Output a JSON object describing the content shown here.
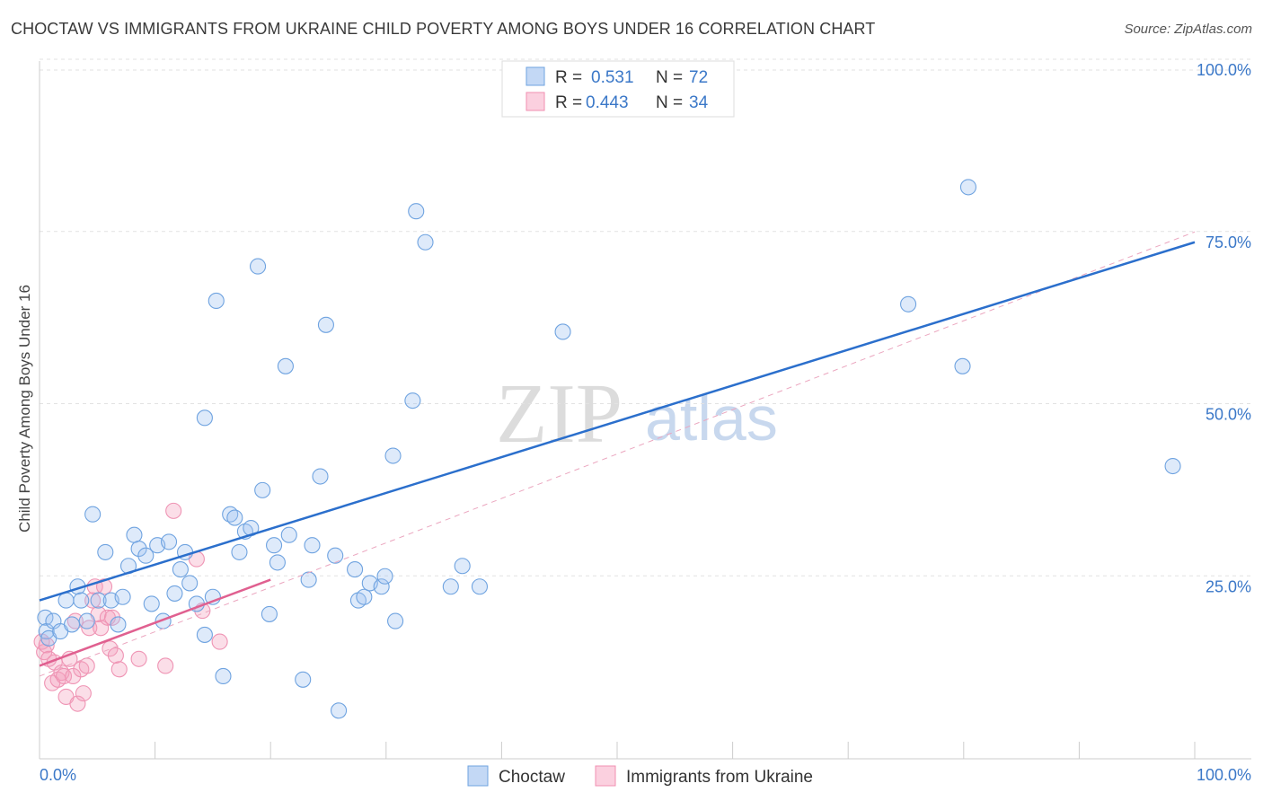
{
  "title": "CHOCTAW VS IMMIGRANTS FROM UKRAINE CHILD POVERTY AMONG BOYS UNDER 16 CORRELATION CHART",
  "source": "Source: ZipAtlas.com",
  "watermark": {
    "zip": "ZIP",
    "atlas": "atlas"
  },
  "legend_top": [
    {
      "r_label": "R =",
      "r_value": "0.531",
      "n_label": "N =",
      "n_value": "72"
    },
    {
      "r_label": "R =",
      "r_value": "0.443",
      "n_label": "N =",
      "n_value": "34"
    }
  ],
  "legend_bottom": [
    "Choctaw",
    "Immigrants from Ukraine"
  ],
  "chart_data": {
    "type": "scatter",
    "ylabel": "Child Poverty Among Boys Under 16",
    "xlim": [
      0,
      100
    ],
    "ylim": [
      0,
      100
    ],
    "x_tick_labels": [
      "0.0%",
      "100.0%"
    ],
    "y_ticks": [
      25,
      50,
      75,
      100
    ],
    "y_tick_labels": [
      "25.0%",
      "50.0%",
      "75.0%",
      "100.0%"
    ],
    "grid": true,
    "legend_position": "top-center",
    "colors": {
      "choctaw": "#6fa3e0",
      "ukraine": "#f08fb0",
      "choctaw_line": "#2b6fcc",
      "ukraine_line": "#e06090"
    },
    "series": [
      {
        "name": "Choctaw",
        "trend": {
          "x": [
            0,
            100
          ],
          "y": [
            23,
            75
          ]
        },
        "points": [
          [
            0.5,
            20.5
          ],
          [
            0.6,
            18.5
          ],
          [
            0.8,
            17.5
          ],
          [
            1.2,
            20
          ],
          [
            1.8,
            18.5
          ],
          [
            2.3,
            23
          ],
          [
            2.8,
            19.5
          ],
          [
            3.3,
            25
          ],
          [
            3.6,
            23
          ],
          [
            4.1,
            20
          ],
          [
            4.6,
            35.5
          ],
          [
            5.1,
            23
          ],
          [
            5.7,
            30
          ],
          [
            6.2,
            23
          ],
          [
            6.8,
            19.5
          ],
          [
            7.2,
            23.5
          ],
          [
            7.7,
            28
          ],
          [
            8.2,
            32.5
          ],
          [
            8.6,
            30.5
          ],
          [
            9.2,
            29.5
          ],
          [
            9.7,
            22.5
          ],
          [
            10.2,
            31
          ],
          [
            10.7,
            20
          ],
          [
            11.2,
            31.5
          ],
          [
            11.7,
            24
          ],
          [
            12.2,
            27.5
          ],
          [
            12.6,
            30
          ],
          [
            13,
            25.5
          ],
          [
            13.6,
            22.5
          ],
          [
            14.3,
            18
          ],
          [
            14.3,
            49.5
          ],
          [
            15,
            23.5
          ],
          [
            15.3,
            66.5
          ],
          [
            15.9,
            12
          ],
          [
            16.5,
            35.5
          ],
          [
            16.9,
            35
          ],
          [
            17.3,
            30
          ],
          [
            17.8,
            33
          ],
          [
            18.3,
            33.5
          ],
          [
            18.9,
            71.5
          ],
          [
            19.3,
            39
          ],
          [
            19.9,
            21
          ],
          [
            20.3,
            31
          ],
          [
            20.6,
            28.5
          ],
          [
            21.3,
            57
          ],
          [
            21.6,
            32.5
          ],
          [
            22.8,
            11.5
          ],
          [
            23.3,
            26
          ],
          [
            23.6,
            31
          ],
          [
            24.3,
            41
          ],
          [
            24.8,
            63
          ],
          [
            25.6,
            29.5
          ],
          [
            25.9,
            7
          ],
          [
            27.3,
            27.5
          ],
          [
            27.6,
            23
          ],
          [
            28.1,
            23.5
          ],
          [
            28.6,
            25.5
          ],
          [
            29.6,
            25
          ],
          [
            29.9,
            26.5
          ],
          [
            30.6,
            44
          ],
          [
            30.8,
            20
          ],
          [
            32.3,
            52
          ],
          [
            32.6,
            79.5
          ],
          [
            33.4,
            75
          ],
          [
            35.6,
            25
          ],
          [
            36.6,
            28
          ],
          [
            38.1,
            25
          ],
          [
            45.3,
            62
          ],
          [
            75.2,
            66
          ],
          [
            79.9,
            57
          ],
          [
            80.4,
            83
          ],
          [
            98.1,
            42.5
          ]
        ]
      },
      {
        "name": "Immigrants from Ukraine",
        "trend": {
          "x": [
            0,
            20
          ],
          "y": [
            13.5,
            26
          ]
        },
        "trend_dashed": {
          "x": [
            0,
            100
          ],
          "y": [
            12,
            76.5
          ]
        },
        "points": [
          [
            0.2,
            17
          ],
          [
            0.4,
            15.5
          ],
          [
            0.6,
            16.5
          ],
          [
            0.8,
            14.5
          ],
          [
            1.1,
            11
          ],
          [
            1.3,
            14
          ],
          [
            1.6,
            11.5
          ],
          [
            1.9,
            12.5
          ],
          [
            2.1,
            12
          ],
          [
            2.3,
            9
          ],
          [
            2.6,
            14.5
          ],
          [
            2.9,
            12
          ],
          [
            3.1,
            20
          ],
          [
            3.3,
            8
          ],
          [
            3.6,
            13
          ],
          [
            3.8,
            9.5
          ],
          [
            4.1,
            13.5
          ],
          [
            4.3,
            19
          ],
          [
            4.6,
            23
          ],
          [
            4.8,
            25
          ],
          [
            5.1,
            21
          ],
          [
            5.3,
            19
          ],
          [
            5.6,
            25
          ],
          [
            5.9,
            20.5
          ],
          [
            6.1,
            16
          ],
          [
            6.3,
            20.5
          ],
          [
            6.6,
            15
          ],
          [
            6.9,
            13
          ],
          [
            8.6,
            14.5
          ],
          [
            10.9,
            13.5
          ],
          [
            11.6,
            36
          ],
          [
            13.6,
            29
          ],
          [
            14.1,
            21.5
          ],
          [
            15.6,
            17
          ]
        ]
      }
    ]
  }
}
